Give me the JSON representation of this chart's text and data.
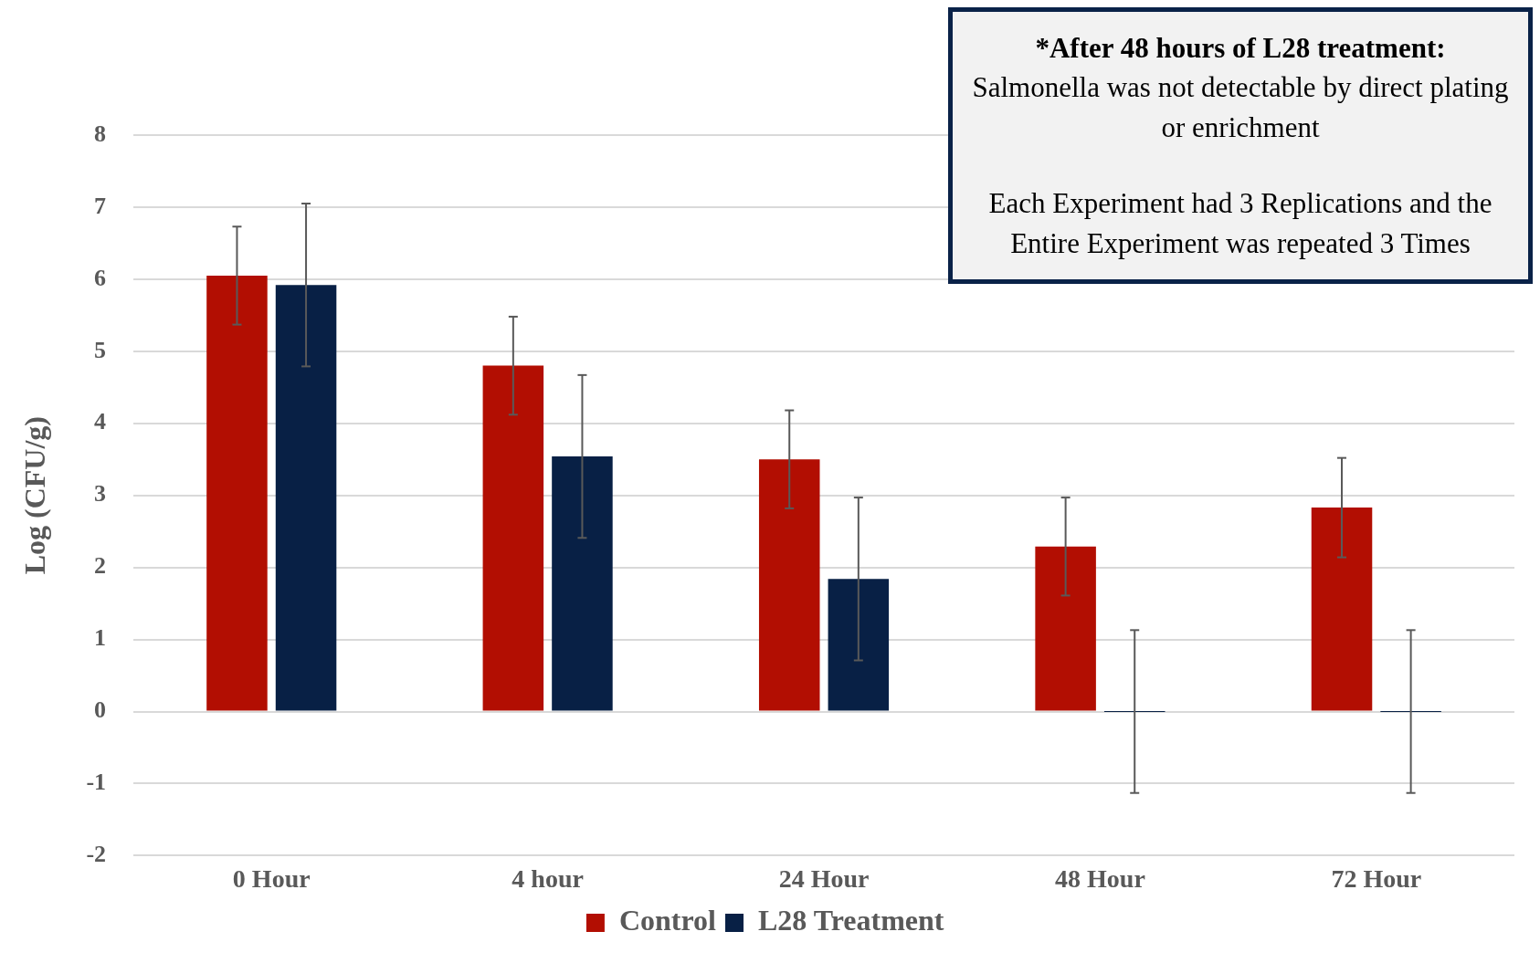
{
  "chart_data": {
    "type": "bar",
    "ylabel": "Log (CFU/g)",
    "categories": [
      "0 Hour",
      "4 hour",
      "24 Hour",
      "48 Hour",
      "72 Hour"
    ],
    "series": [
      {
        "name": "Control",
        "color": "#b20e02",
        "values": [
          6.05,
          4.8,
          3.5,
          2.29,
          2.83
        ],
        "errors": [
          0.68,
          0.68,
          0.68,
          0.68,
          0.69
        ]
      },
      {
        "name": "L28 Treatment",
        "color": "#082045",
        "values": [
          5.92,
          3.54,
          1.84,
          0,
          0
        ],
        "errors": [
          1.13,
          1.13,
          1.13,
          1.13,
          1.13
        ]
      }
    ],
    "ylim": [
      -2,
      8
    ],
    "yticks": [
      -2,
      -1,
      0,
      1,
      2,
      3,
      4,
      5,
      6,
      7,
      8
    ],
    "grid": "y",
    "legend": "bottom",
    "annotations": [
      "*After 48 hours of L28 treatment:",
      "Salmonella was not detectable by direct plating or enrichment",
      "Each Experiment had 3 Replications and the Entire Experiment was repeated 3 Times"
    ]
  }
}
